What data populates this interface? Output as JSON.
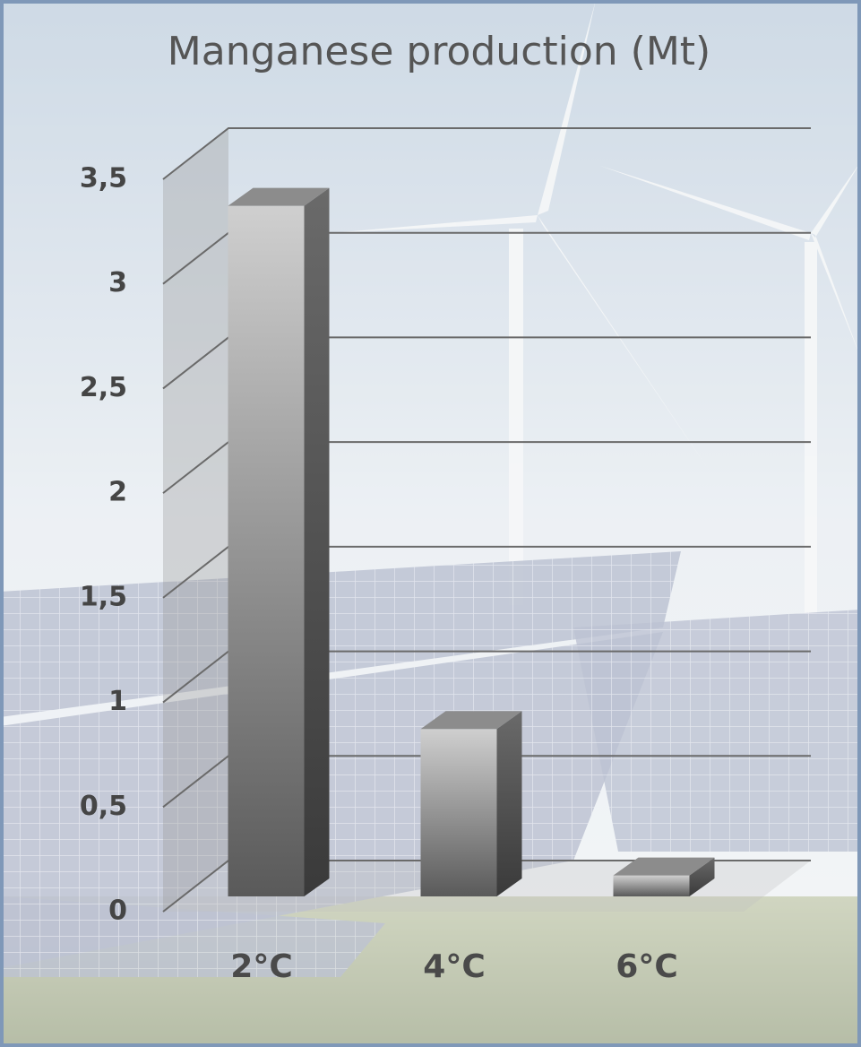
{
  "chart_data": {
    "type": "bar3d",
    "title": "Manganese production (Mt)",
    "categories": [
      "2°C",
      "4°C",
      "6°C"
    ],
    "values": [
      3.3,
      0.8,
      0.1
    ],
    "ylim": [
      0,
      3.5
    ],
    "yticks": [
      0,
      {
        "value": 0.5,
        "label": "0,5"
      },
      1,
      {
        "value": 1.5,
        "label": "1,5"
      },
      2,
      {
        "value": 2.5,
        "label": "2,5"
      },
      3,
      {
        "value": 3.5,
        "label": "3,5"
      }
    ],
    "grid": true
  }
}
